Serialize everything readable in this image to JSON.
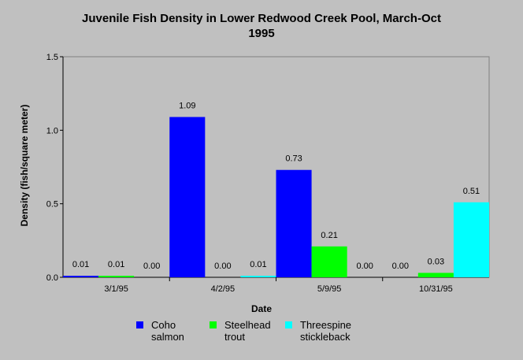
{
  "title_line1": "Juvenile Fish Density in Lower Redwood Creek Pool, March-Oct",
  "title_line2": "1995",
  "chart_data": {
    "type": "bar",
    "title": "Juvenile Fish Density in Lower Redwood Creek Pool, March-Oct 1995",
    "xlabel": "Date",
    "ylabel": "Density (fish/square meter)",
    "categories": [
      "3/1/95",
      "4/2/95",
      "5/9/95",
      "10/31/95"
    ],
    "ylim": [
      0,
      1.5
    ],
    "yticks": [
      "0.0",
      "0.5",
      "1.0",
      "1.5"
    ],
    "series": [
      {
        "name": "Coho salmon",
        "legend_label": "Coho\nsalmon",
        "color": "#0000ff",
        "values": [
          0.01,
          1.09,
          0.73,
          0.0
        ],
        "labels": [
          "0.01",
          "1.09",
          "0.73",
          "0.00"
        ]
      },
      {
        "name": "Steelhead trout",
        "legend_label": "Steelhead\ntrout",
        "color": "#00ff00",
        "values": [
          0.01,
          0.0,
          0.21,
          0.03
        ],
        "labels": [
          "0.01",
          "0.00",
          "0.21",
          "0.03"
        ]
      },
      {
        "name": "Threespine stickleback",
        "legend_label": "Threespine\nstickleback",
        "color": "#00ffff",
        "values": [
          0.0,
          0.01,
          0.0,
          0.51
        ],
        "labels": [
          "0.00",
          "0.01",
          "0.00",
          "0.51"
        ]
      }
    ],
    "legend_position": "bottom",
    "grid": false
  }
}
